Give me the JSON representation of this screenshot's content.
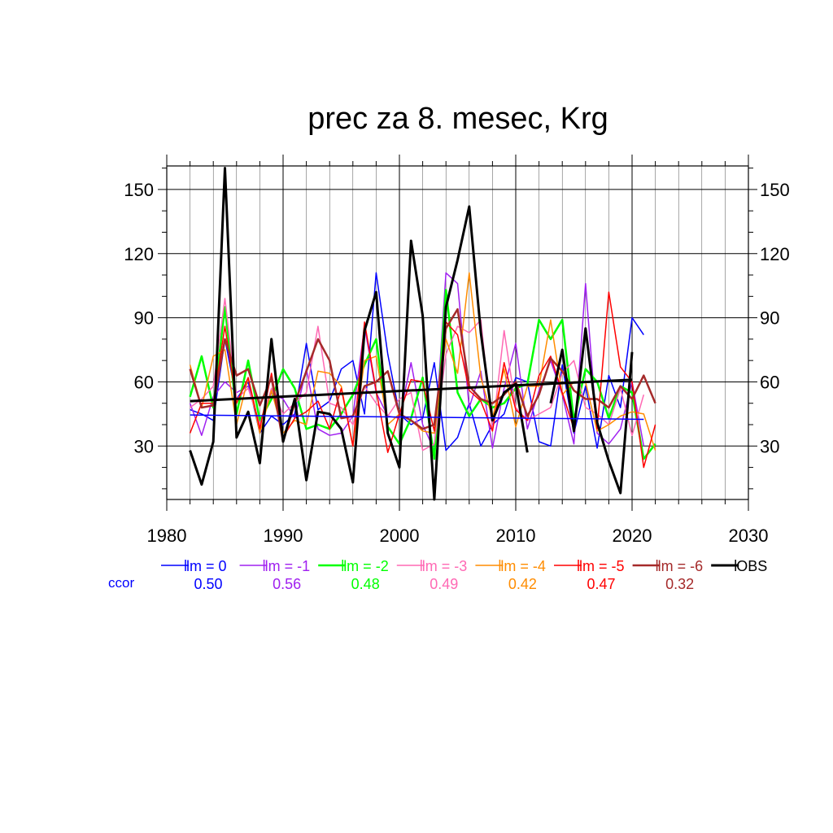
{
  "chart_data": {
    "type": "line",
    "title": "prec za 8. mesec, Krg",
    "xlabel": "",
    "ylabel": "",
    "xlim": [
      1980,
      2030
    ],
    "ylim": [
      5,
      161
    ],
    "x_ticks": [
      1980,
      1990,
      2000,
      2010,
      2020,
      2030
    ],
    "y_ticks": [
      30,
      60,
      90,
      120,
      150
    ],
    "grid": true,
    "legend_position": "bottom",
    "ccor_label": "ccor",
    "ccor_color": "#0000ff",
    "series": [
      {
        "name": "lm = 0",
        "ccor": "0.50",
        "color": "#0000ff",
        "width": 1.5,
        "x": [
          1982,
          1983,
          1984,
          1985,
          1986,
          1987,
          1988,
          1989,
          1990,
          1991,
          1992,
          1993,
          1994,
          1995,
          1996,
          1997,
          1998,
          1999,
          2000,
          2001,
          2002,
          2003,
          2004,
          2005,
          2006,
          2007,
          2008,
          2009,
          2010,
          2011,
          2012,
          2013,
          2014,
          2015,
          2016,
          2017,
          2018,
          2019,
          2020,
          2021
        ],
        "values": [
          47,
          45,
          42,
          80,
          52,
          60,
          36,
          44,
          40,
          45,
          78,
          47,
          51,
          66,
          70,
          45,
          111,
          73,
          45,
          40,
          43,
          69,
          28,
          34,
          50,
          30,
          40,
          45,
          62,
          60,
          32,
          30,
          68,
          36,
          58,
          29,
          63,
          48,
          90,
          82
        ]
      },
      {
        "name": "lm = -1",
        "ccor": "0.56",
        "color": "#a020f0",
        "width": 1.5,
        "x": [
          1982,
          1983,
          1984,
          1985,
          1986,
          1987,
          1988,
          1989,
          1990,
          1991,
          1992,
          1993,
          1994,
          1995,
          1996,
          1997,
          1998,
          1999,
          2000,
          2001,
          2002,
          2003,
          2004,
          2005,
          2006,
          2007,
          2008,
          2009,
          2010,
          2011,
          2012,
          2013,
          2014,
          2015,
          2016,
          2017,
          2018,
          2019,
          2020,
          2021
        ],
        "values": [
          50,
          35,
          53,
          60,
          55,
          58,
          40,
          55,
          52,
          43,
          66,
          38,
          35,
          36,
          44,
          86,
          55,
          44,
          43,
          69,
          40,
          28,
          111,
          106,
          48,
          65,
          29,
          57,
          78,
          38,
          56,
          70,
          54,
          31,
          106,
          36,
          31,
          38,
          60,
          30
        ]
      },
      {
        "name": "lm = -2",
        "ccor": "0.48",
        "color": "#00ff00",
        "width": 2.5,
        "x": [
          1982,
          1983,
          1984,
          1985,
          1986,
          1987,
          1988,
          1989,
          1990,
          1991,
          1992,
          1993,
          1994,
          1995,
          1996,
          1997,
          1998,
          1999,
          2000,
          2001,
          2002,
          2003,
          2004,
          2005,
          2006,
          2007,
          2008,
          2009,
          2010,
          2011,
          2012,
          2013,
          2014,
          2015,
          2016,
          2017,
          2018,
          2019,
          2020,
          2021,
          2022
        ],
        "values": [
          53,
          72,
          48,
          95,
          45,
          70,
          42,
          52,
          66,
          57,
          38,
          40,
          38,
          45,
          54,
          68,
          80,
          39,
          31,
          43,
          62,
          24,
          103,
          55,
          44,
          52,
          48,
          50,
          57,
          59,
          89,
          80,
          89,
          42,
          66,
          60,
          43,
          58,
          55,
          24,
          31
        ]
      },
      {
        "name": "lm = -3",
        "ccor": "0.49",
        "color": "#ff69b4",
        "width": 1.5,
        "x": [
          1982,
          1983,
          1984,
          1985,
          1986,
          1987,
          1988,
          1989,
          1990,
          1991,
          1992,
          1993,
          1994,
          1995,
          1996,
          1997,
          1998,
          1999,
          2000,
          2001,
          2002,
          2003,
          2004,
          2005,
          2006,
          2007,
          2008,
          2009,
          2010,
          2011,
          2012,
          2013,
          2014,
          2015,
          2016,
          2017,
          2018,
          2019,
          2020,
          2021
        ],
        "values": [
          48,
          52,
          58,
          99,
          52,
          57,
          40,
          57,
          45,
          50,
          55,
          86,
          50,
          48,
          40,
          58,
          50,
          44,
          52,
          55,
          28,
          31,
          73,
          86,
          83,
          89,
          37,
          84,
          48,
          42,
          45,
          48,
          64,
          70,
          48,
          45,
          40,
          57,
          35,
          54
        ]
      },
      {
        "name": "lm = -4",
        "ccor": "0.42",
        "color": "#ff8c00",
        "width": 1.5,
        "x": [
          1982,
          1983,
          1984,
          1985,
          1986,
          1987,
          1988,
          1989,
          1990,
          1991,
          1992,
          1993,
          1994,
          1995,
          1996,
          1997,
          1998,
          1999,
          2000,
          2001,
          2002,
          2003,
          2004,
          2005,
          2006,
          2007,
          2008,
          2009,
          2010,
          2011,
          2012,
          2013,
          2014,
          2015,
          2016,
          2017,
          2018,
          2019,
          2020,
          2021,
          2022
        ],
        "values": [
          68,
          48,
          72,
          75,
          40,
          62,
          36,
          56,
          36,
          42,
          40,
          65,
          64,
          58,
          30,
          70,
          72,
          40,
          45,
          42,
          37,
          36,
          80,
          64,
          111,
          62,
          43,
          66,
          39,
          58,
          58,
          89,
          54,
          60,
          60,
          37,
          40,
          44,
          46,
          45,
          28
        ]
      },
      {
        "name": "lm = -5",
        "ccor": "0.47",
        "color": "#ff0000",
        "width": 1.5,
        "x": [
          1982,
          1983,
          1984,
          1985,
          1986,
          1987,
          1988,
          1989,
          1990,
          1991,
          1992,
          1993,
          1994,
          1995,
          1996,
          1997,
          1998,
          1999,
          2000,
          2001,
          2002,
          2003,
          2004,
          2005,
          2006,
          2007,
          2008,
          2009,
          2010,
          2011,
          2012,
          2013,
          2014,
          2015,
          2016,
          2017,
          2018,
          2019,
          2020,
          2021,
          2022
        ],
        "values": [
          36,
          50,
          50,
          86,
          50,
          62,
          38,
          64,
          34,
          43,
          46,
          51,
          38,
          57,
          30,
          88,
          56,
          27,
          45,
          61,
          60,
          37,
          88,
          82,
          56,
          51,
          37,
          69,
          47,
          42,
          63,
          72,
          55,
          38,
          85,
          38,
          102,
          67,
          60,
          20,
          40
        ]
      },
      {
        "name": "lm = -6",
        "ccor": "0.32",
        "color": "#a52a2a",
        "width": 2.5,
        "x": [
          1982,
          1983,
          1984,
          1985,
          1986,
          1987,
          1988,
          1989,
          1990,
          1991,
          1992,
          1993,
          1994,
          1995,
          1996,
          1997,
          1998,
          1999,
          2000,
          2001,
          2002,
          2003,
          2004,
          2005,
          2006,
          2007,
          2008,
          2009,
          2010,
          2011,
          2012,
          2013,
          2014,
          2015,
          2016,
          2017,
          2018,
          2019,
          2020,
          2021,
          2022
        ],
        "values": [
          66,
          48,
          49,
          80,
          63,
          66,
          49,
          62,
          32,
          50,
          65,
          80,
          70,
          43,
          44,
          58,
          60,
          65,
          45,
          42,
          38,
          40,
          85,
          94,
          58,
          52,
          50,
          54,
          60,
          44,
          54,
          71,
          65,
          56,
          52,
          52,
          48,
          58,
          52,
          63,
          50
        ]
      },
      {
        "name": "OBS",
        "ccor": "",
        "color": "#000000",
        "width": 3,
        "x": [
          1982,
          1983,
          1984,
          1985,
          1986,
          1987,
          1988,
          1989,
          1990,
          1991,
          1992,
          1993,
          1994,
          1995,
          1996,
          1997,
          1998,
          1999,
          2000,
          2001,
          2002,
          2003,
          2004,
          2005,
          2006,
          2007,
          2008,
          2009,
          2010,
          2011,
          2012,
          2013,
          2014,
          2015,
          2016,
          2017,
          2018,
          2019,
          2020
        ],
        "values": [
          28,
          12,
          32,
          160,
          34,
          46,
          22,
          80,
          32,
          52,
          14,
          46,
          45,
          38,
          13,
          84,
          102,
          36,
          20,
          126,
          91,
          5,
          95,
          117,
          142,
          83,
          42,
          55,
          59,
          27,
          null,
          50,
          75,
          37,
          85,
          41,
          23,
          8,
          74
        ]
      }
    ],
    "trend_lines": [
      {
        "color": "#0000ff",
        "width": 1.5,
        "x": [
          1982,
          2021
        ],
        "values": [
          44.5,
          42.5
        ]
      },
      {
        "color": "#000000",
        "width": 3,
        "x": [
          1982,
          2020
        ],
        "values": [
          51,
          61
        ]
      }
    ]
  }
}
